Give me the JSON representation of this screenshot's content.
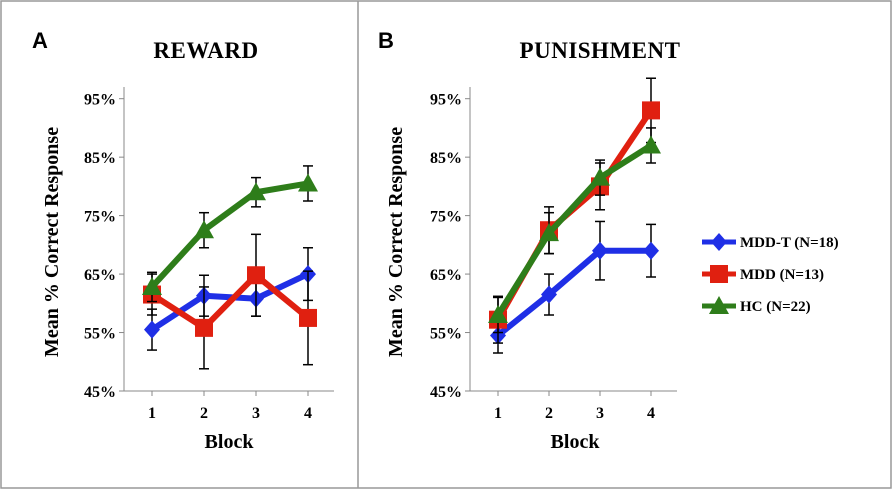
{
  "chart_data": [
    {
      "type": "line",
      "panel": "A",
      "title": "REWARD",
      "xlabel": "Block",
      "ylabel": "Mean % Correct Response",
      "categories": [
        "1",
        "2",
        "3",
        "4"
      ],
      "yticks": [
        "45%",
        "55%",
        "65%",
        "75%",
        "85%",
        "95%"
      ],
      "ylim": [
        45,
        97
      ],
      "series": [
        {
          "name": "MDD-T (N=18)",
          "color": "#1f2fe6",
          "marker": "diamond",
          "values": [
            55.5,
            61.3,
            60.8,
            65.0
          ],
          "errors": [
            3.5,
            3.5,
            3.0,
            4.5
          ]
        },
        {
          "name": "MDD (N=13)",
          "color": "#e02010",
          "marker": "square",
          "values": [
            61.5,
            55.8,
            64.8,
            57.5
          ],
          "errors": [
            3.5,
            7.0,
            7.0,
            8.0
          ]
        },
        {
          "name": "HC (N=22)",
          "color": "#2e7d1a",
          "marker": "triangle",
          "values": [
            62.8,
            72.5,
            79.0,
            80.5
          ],
          "errors": [
            2.5,
            3.0,
            2.5,
            3.0
          ]
        }
      ]
    },
    {
      "type": "line",
      "panel": "B",
      "title": "PUNISHMENT",
      "xlabel": "Block",
      "ylabel": "Mean % Correct Response",
      "categories": [
        "1",
        "2",
        "3",
        "4"
      ],
      "yticks": [
        "45%",
        "55%",
        "65%",
        "75%",
        "85%",
        "95%"
      ],
      "ylim": [
        45,
        97
      ],
      "series": [
        {
          "name": "MDD-T (N=18)",
          "color": "#1f2fe6",
          "marker": "diamond",
          "values": [
            54.5,
            61.5,
            69.0,
            69.0
          ],
          "errors": [
            3.0,
            3.5,
            5.0,
            4.5
          ]
        },
        {
          "name": "MDD (N=13)",
          "color": "#e02010",
          "marker": "square",
          "values": [
            57.2,
            72.5,
            80.0,
            93.0
          ],
          "errors": [
            4.0,
            4.0,
            4.0,
            5.5
          ]
        },
        {
          "name": "HC (N=22)",
          "color": "#2e7d1a",
          "marker": "triangle",
          "values": [
            58.0,
            72.0,
            81.5,
            87.0
          ],
          "errors": [
            3.0,
            3.5,
            3.0,
            3.0
          ]
        }
      ]
    }
  ],
  "legend": [
    {
      "label": "MDD-T (N=18)",
      "color": "#1f2fe6",
      "marker": "diamond"
    },
    {
      "label": "MDD (N=13)",
      "color": "#e02010",
      "marker": "square"
    },
    {
      "label": "HC (N=22)",
      "color": "#2e7d1a",
      "marker": "triangle"
    }
  ]
}
